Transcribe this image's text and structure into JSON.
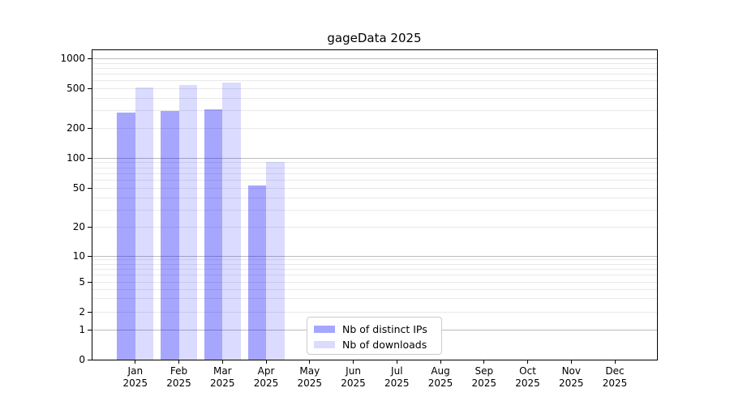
{
  "title": "gageData 2025",
  "axes": {
    "y_ticks": [
      1000,
      500,
      200,
      100,
      50,
      20,
      10,
      5,
      2,
      1,
      0
    ],
    "x_months": [
      "Jan",
      "Feb",
      "Mar",
      "Apr",
      "May",
      "Jun",
      "Jul",
      "Aug",
      "Sep",
      "Oct",
      "Nov",
      "Dec"
    ],
    "x_year": "2025"
  },
  "legend": {
    "items": [
      {
        "label": "Nb of distinct IPs",
        "color": "rgba(0,0,255,0.35)"
      },
      {
        "label": "Nb of downloads",
        "color": "rgba(0,0,255,0.14)"
      }
    ]
  },
  "colors": {
    "grid_major": "#bcbcbc",
    "grid_minor": "#e9e9e9",
    "spine": "#000000"
  },
  "chart_data": {
    "type": "bar",
    "title": "gageData 2025",
    "categories": [
      "Jan 2025",
      "Feb 2025",
      "Mar 2025",
      "Apr 2025",
      "May 2025",
      "Jun 2025",
      "Jul 2025",
      "Aug 2025",
      "Sep 2025",
      "Oct 2025",
      "Nov 2025",
      "Dec 2025"
    ],
    "series": [
      {
        "name": "Nb of distinct IPs",
        "color": "rgba(0,0,255,0.35)",
        "values": [
          285,
          300,
          310,
          54,
          null,
          null,
          null,
          null,
          null,
          null,
          null,
          null
        ]
      },
      {
        "name": "Nb of downloads",
        "color": "rgba(0,0,255,0.14)",
        "values": [
          515,
          540,
          575,
          92,
          null,
          null,
          null,
          null,
          null,
          null,
          null,
          null
        ]
      }
    ],
    "xlabel": "",
    "ylabel": "",
    "yscale": "symlog",
    "y_ticks": [
      0,
      1,
      2,
      5,
      10,
      20,
      50,
      100,
      200,
      500,
      1000
    ],
    "ylim": [
      0,
      1250
    ],
    "grid": "horizontal major+minor",
    "legend_position": "inside lower-center"
  }
}
